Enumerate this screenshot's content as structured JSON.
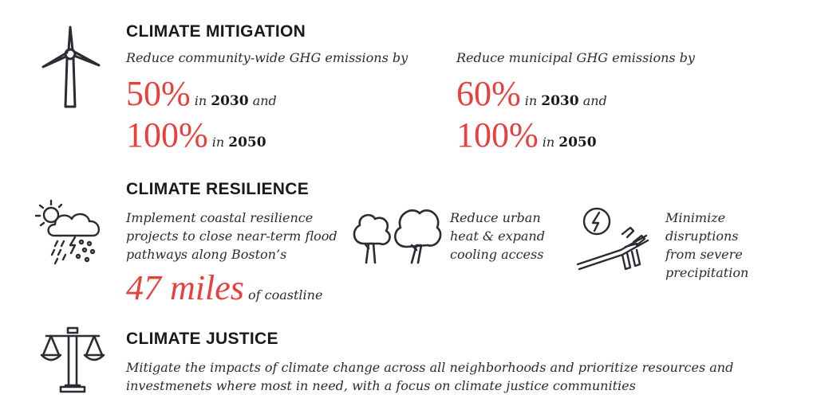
{
  "colors": {
    "accent": "#e8403f",
    "text": "#231f20",
    "icon": "#2b2b33"
  },
  "icons": {
    "mitigation": "wind-turbine-icon",
    "resilience_weather": "storm-cloud-icon",
    "resilience_trees": "trees-icon",
    "resilience_power": "power-substation-icon",
    "justice": "scales-icon"
  },
  "mitigation": {
    "heading": "CLIMATE MITIGATION",
    "community": {
      "intro": "Reduce community-wide GHG emissions by",
      "target1_value": "50%",
      "target1_in": "in",
      "target1_year": "2030",
      "target1_and": "and",
      "target2_value": "100%",
      "target2_in": "in",
      "target2_year": "2050"
    },
    "municipal": {
      "intro": "Reduce municipal GHG emissions by",
      "target1_value": "60%",
      "target1_in": "in",
      "target1_year": "2030",
      "target1_and": "and",
      "target2_value": "100%",
      "target2_in": "in",
      "target2_year": "2050"
    }
  },
  "resilience": {
    "heading": "CLIMATE RESILIENCE",
    "coastal": {
      "line1": "Implement coastal resilience",
      "line2": "projects to close near-term flood",
      "line3": "pathways along Boston’s",
      "value": "47 miles",
      "suffix": "of coastline"
    },
    "heat": {
      "line1": "Reduce urban",
      "line2": "heat & expand",
      "line3": "cooling access"
    },
    "precip": {
      "line1": "Minimize",
      "line2": "disruptions",
      "line3": "from severe",
      "line4": "precipitation"
    }
  },
  "justice": {
    "heading": "CLIMATE JUSTICE",
    "line1": "Mitigate the impacts of climate change across all neighborhoods and prioritize resources and",
    "line2": "investmenets where most in need, with a focus on climate justice communities"
  }
}
